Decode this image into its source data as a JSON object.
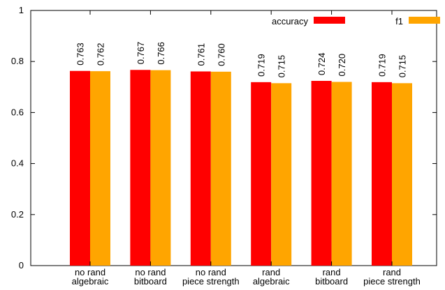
{
  "chart_data": {
    "type": "bar",
    "categories": [
      [
        "no rand",
        "algebraic"
      ],
      [
        "no rand",
        "bitboard"
      ],
      [
        "no rand",
        "piece strength"
      ],
      [
        "rand",
        "algebraic"
      ],
      [
        "rand",
        "bitboard"
      ],
      [
        "rand",
        "piece strength"
      ]
    ],
    "series": [
      {
        "name": "accuracy",
        "color": "#ff0000",
        "values": [
          0.763,
          0.767,
          0.761,
          0.719,
          0.724,
          0.719
        ],
        "labels": [
          "0.763",
          "0.767",
          "0.761",
          "0.719",
          "0.724",
          "0.719"
        ]
      },
      {
        "name": "f1",
        "color": "#ffa500",
        "values": [
          0.762,
          0.766,
          0.76,
          0.715,
          0.72,
          0.715
        ],
        "labels": [
          "0.762",
          "0.766",
          "0.760",
          "0.715",
          "0.720",
          "0.715"
        ]
      }
    ],
    "ylim": [
      0,
      1
    ],
    "yticks": [
      0,
      0.2,
      0.4,
      0.6,
      0.8,
      1
    ],
    "ytick_labels": [
      "0",
      "0.2",
      "0.4",
      "0.6",
      "0.8",
      "1"
    ],
    "grid": false,
    "legend": "top-right",
    "title": "",
    "xlabel": "",
    "ylabel": ""
  }
}
